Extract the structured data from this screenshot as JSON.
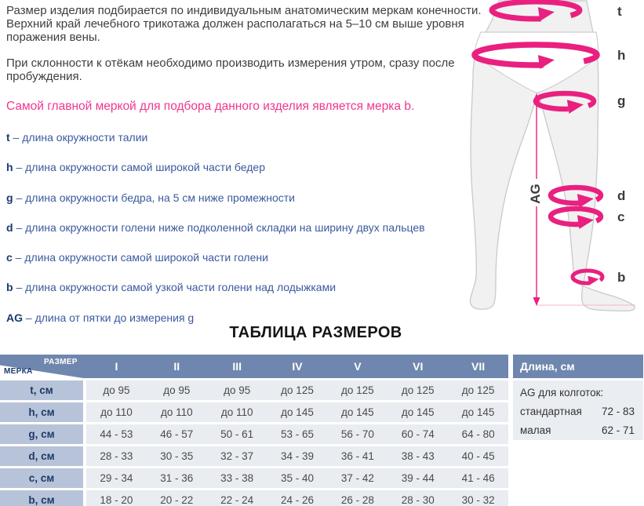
{
  "intro": {
    "p1": "Размер изделия подбирается по индивидуальным анатомическим меркам конечности. Верхний край лечебного трикотажа должен располагаться на 5–10 см выше уровня поражения вены.",
    "p2": "При склонности к отёкам необходимо производить измерения утром, сразу после пробуждения.",
    "highlight": "Самой главной меркой для подбора данного изделия является мерка b."
  },
  "measurements": [
    {
      "key": "t",
      "desc": "длина окружности талии"
    },
    {
      "key": "h",
      "desc": "длина окружности самой широкой части бедер"
    },
    {
      "key": "g",
      "desc": "длина окружности бедра, на 5 см ниже промежности"
    },
    {
      "key": "d",
      "desc": "длина окружности голени ниже подколенной складки на ширину двух пальцев"
    },
    {
      "key": "c",
      "desc": "длина окружности самой широкой части голени"
    },
    {
      "key": "b",
      "desc": "длина окружности самой узкой части голени над лодыжками"
    },
    {
      "key": "AG",
      "desc": "длина от пятки до измерения g"
    }
  ],
  "diagram": {
    "labels": [
      "t",
      "h",
      "g",
      "d",
      "c",
      "b"
    ],
    "ag_label": "AG"
  },
  "size_table": {
    "title": "ТАБЛИЦА РАЗМЕРОВ",
    "corner": {
      "top": "РАЗМЕР",
      "bottom": "МЕРКА"
    },
    "columns": [
      "I",
      "II",
      "III",
      "IV",
      "V",
      "VI",
      "VII"
    ],
    "rows": [
      {
        "label": "t, см",
        "values": [
          "до 95",
          "до 95",
          "до 95",
          "до 125",
          "до 125",
          "до 125",
          "до 125"
        ]
      },
      {
        "label": "h, см",
        "values": [
          "до 110",
          "до 110",
          "до 110",
          "до 145",
          "до 145",
          "до 145",
          "до 145"
        ]
      },
      {
        "label": "g, см",
        "values": [
          "44 - 53",
          "46 - 57",
          "50 - 61",
          "53 - 65",
          "56 - 70",
          "60 - 74",
          "64 - 80"
        ]
      },
      {
        "label": "d, см",
        "values": [
          "28 - 33",
          "30 - 35",
          "32 - 37",
          "34 - 39",
          "36 - 41",
          "38 - 43",
          "40 - 45"
        ]
      },
      {
        "label": "c, см",
        "values": [
          "29 - 34",
          "31 - 36",
          "33 - 38",
          "35 - 40",
          "37 - 42",
          "39 - 44",
          "41 - 46"
        ]
      },
      {
        "label": "b, см",
        "values": [
          "18 - 20",
          "20 - 22",
          "22 - 24",
          "24 - 26",
          "26 - 28",
          "28 - 30",
          "30 - 32"
        ]
      }
    ]
  },
  "length_panel": {
    "header": "Длина, см",
    "subtitle": "AG для колготок:",
    "rows": [
      {
        "label": "стандартная",
        "value": "72 - 83"
      },
      {
        "label": "малая",
        "value": "62 - 71"
      }
    ]
  },
  "colors": {
    "accent_pink": "#e9207f",
    "highlight_pink": "#f0368e",
    "header_blue": "#6f87ae",
    "row_label_blue": "#b7c3d9",
    "cell_gray": "#e9ecf0",
    "legend_text_blue": "#3a5a9e",
    "legend_key_navy": "#1c3a70",
    "body_text": "#3e3e3e"
  }
}
